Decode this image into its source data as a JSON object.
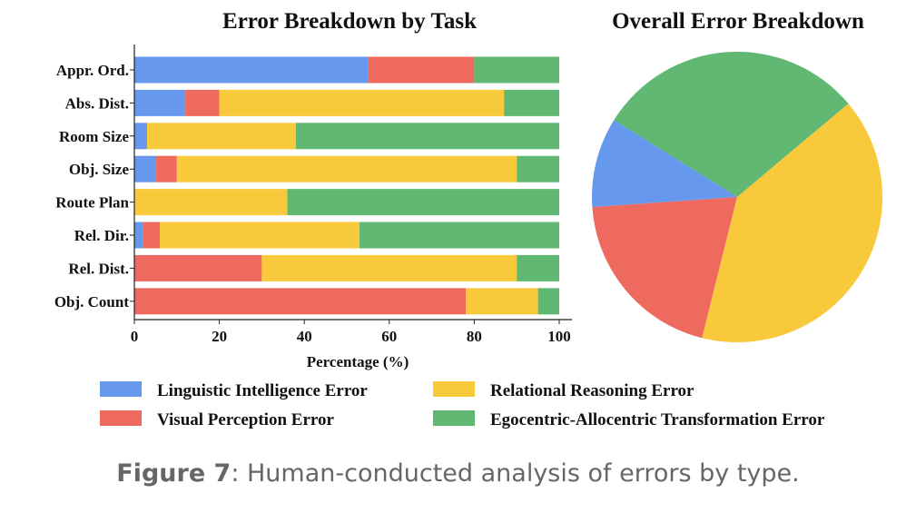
{
  "colors": {
    "linguistic": "#6699ee",
    "visual": "#ee6a5e",
    "relational": "#f9c93c",
    "egocentric": "#60b873"
  },
  "chart_data": [
    {
      "type": "bar",
      "orientation": "horizontal",
      "stacked": true,
      "title": "Error Breakdown by Task",
      "xlabel": "Percentage (%)",
      "ylabel": "",
      "xlim": [
        0,
        100
      ],
      "xticks": [
        "0",
        "20",
        "40",
        "60",
        "80",
        "100"
      ],
      "categories": [
        "Appr. Ord.",
        "Abs. Dist.",
        "Room Size",
        "Obj. Size",
        "Route Plan",
        "Rel. Dir.",
        "Rel. Dist.",
        "Obj. Count"
      ],
      "series": [
        {
          "name": "Linguistic Intelligence Error",
          "color_key": "linguistic",
          "values": [
            55,
            12,
            3,
            5,
            0,
            2,
            0,
            0
          ]
        },
        {
          "name": "Visual Perception Error",
          "color_key": "visual",
          "values": [
            25,
            8,
            0,
            5,
            0,
            4,
            30,
            78
          ]
        },
        {
          "name": "Relational Reasoning Error",
          "color_key": "relational",
          "values": [
            0,
            67,
            35,
            80,
            36,
            47,
            60,
            17
          ]
        },
        {
          "name": "Egocentric-Allocentric Transformation Error",
          "color_key": "egocentric",
          "values": [
            20,
            13,
            62,
            10,
            64,
            47,
            10,
            5
          ]
        }
      ]
    },
    {
      "type": "pie",
      "title": "Overall Error Breakdown",
      "slices": [
        {
          "name": "Linguistic Intelligence Error",
          "color_key": "linguistic",
          "value": 10
        },
        {
          "name": "Visual Perception Error",
          "color_key": "visual",
          "value": 20
        },
        {
          "name": "Relational Reasoning Error",
          "color_key": "relational",
          "value": 40
        },
        {
          "name": "Egocentric-Allocentric Transformation Error",
          "color_key": "egocentric",
          "value": 30
        }
      ]
    }
  ],
  "legend": {
    "placement": "bottom",
    "items": [
      {
        "label": "Linguistic Intelligence Error",
        "color_key": "linguistic"
      },
      {
        "label": "Relational Reasoning Error",
        "color_key": "relational"
      },
      {
        "label": "Visual Perception Error",
        "color_key": "visual"
      },
      {
        "label": "Egocentric-Allocentric Transformation Error",
        "color_key": "egocentric"
      }
    ]
  },
  "caption": {
    "prefix": "Figure 7",
    "text": ": Human-conducted analysis of errors by type."
  }
}
